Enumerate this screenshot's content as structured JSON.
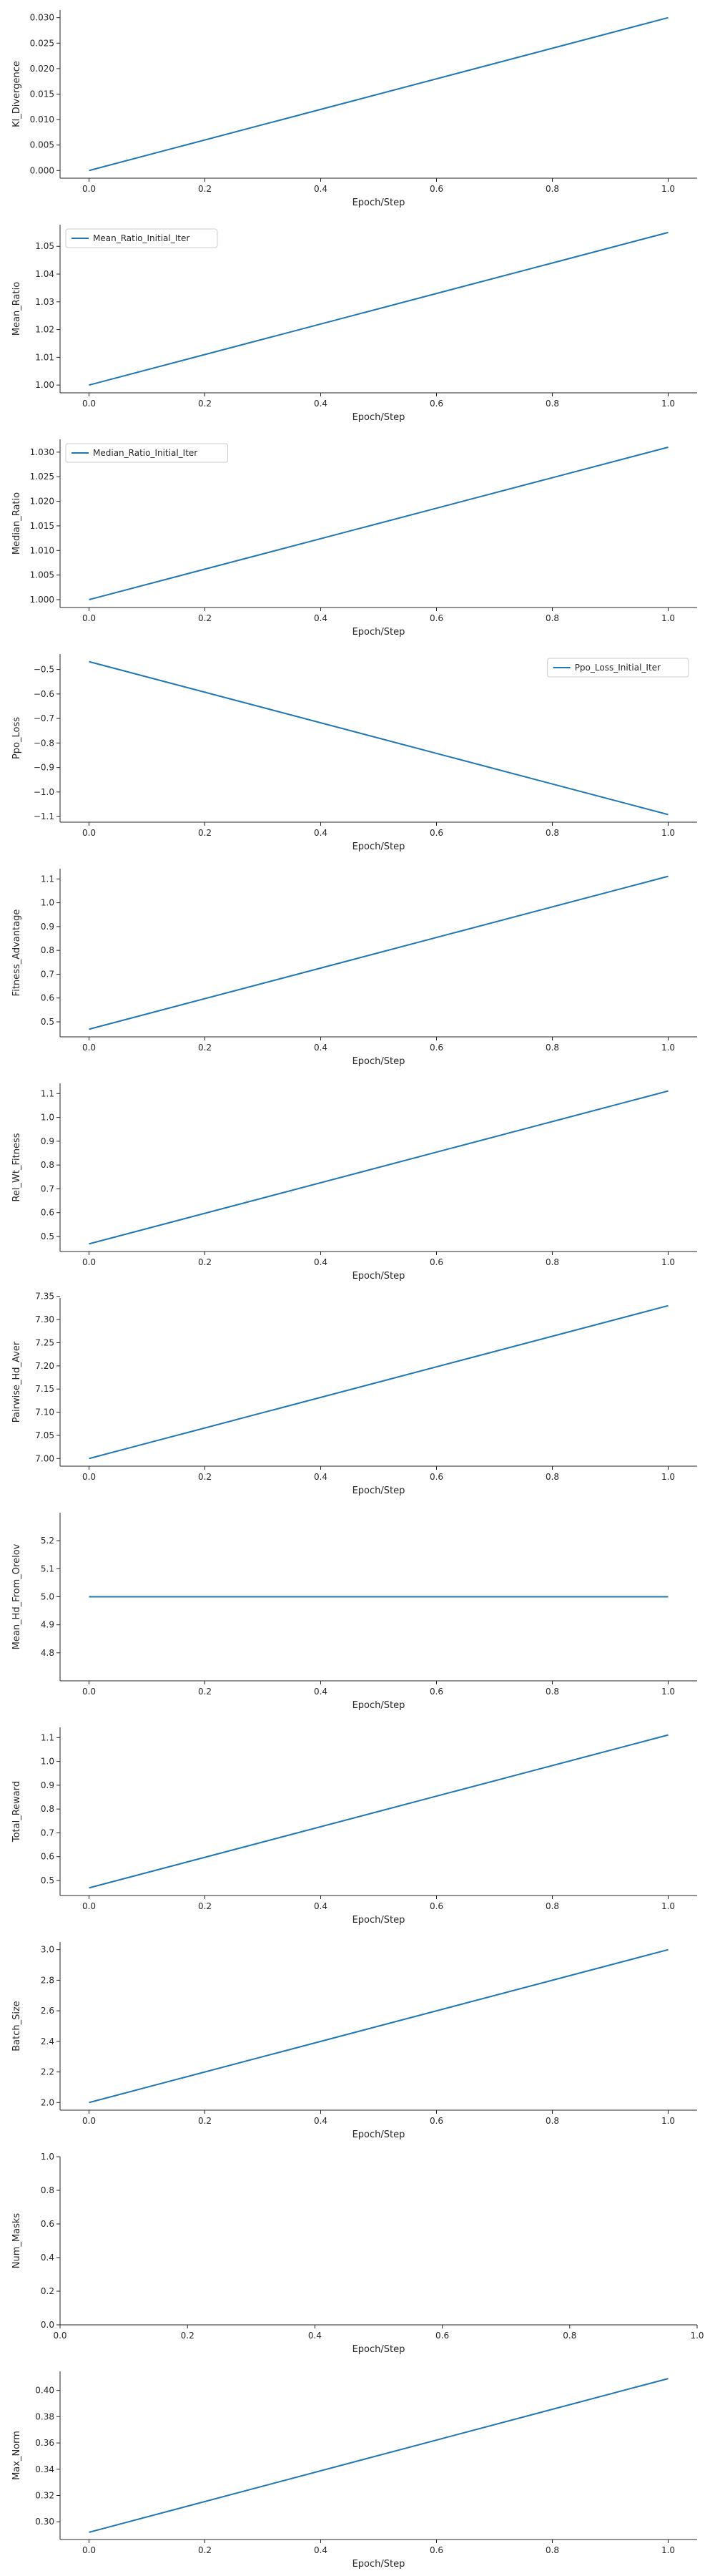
{
  "style": {
    "line_color": "#1f77b4",
    "axis_color": "#262626",
    "legend_border": "#cccccc"
  },
  "chart_data": [
    {
      "type": "line",
      "xlabel": "Epoch/Step",
      "ylabel": "Kl_Divergence",
      "xlim": [
        -0.05,
        1.05
      ],
      "ylim": [
        -0.0015,
        0.0315
      ],
      "xticks": [
        0.0,
        0.2,
        0.4,
        0.6,
        0.8,
        1.0
      ],
      "xtick_labels": [
        "0.0",
        "0.2",
        "0.4",
        "0.6",
        "0.8",
        "1.0"
      ],
      "yticks": [
        0.0,
        0.005,
        0.01,
        0.015,
        0.02,
        0.025,
        0.03
      ],
      "ytick_labels": [
        "0.000",
        "0.005",
        "0.010",
        "0.015",
        "0.020",
        "0.025",
        "0.030"
      ],
      "series": [
        {
          "x": [
            0,
            1
          ],
          "y": [
            0.0,
            0.03
          ]
        }
      ],
      "legend": null
    },
    {
      "type": "line",
      "xlabel": "Epoch/Step",
      "ylabel": "Mean_Ratio",
      "xlim": [
        -0.05,
        1.05
      ],
      "ylim": [
        0.9972,
        1.0578
      ],
      "xticks": [
        0.0,
        0.2,
        0.4,
        0.6,
        0.8,
        1.0
      ],
      "xtick_labels": [
        "0.0",
        "0.2",
        "0.4",
        "0.6",
        "0.8",
        "1.0"
      ],
      "yticks": [
        1.0,
        1.01,
        1.02,
        1.03,
        1.04,
        1.05
      ],
      "ytick_labels": [
        "1.00",
        "1.01",
        "1.02",
        "1.03",
        "1.04",
        "1.05"
      ],
      "series": [
        {
          "name": "Mean_Ratio_Initial_Iter",
          "x": [
            0,
            1
          ],
          "y": [
            1.0,
            1.055
          ]
        }
      ],
      "legend": "upper-left"
    },
    {
      "type": "line",
      "xlabel": "Epoch/Step",
      "ylabel": "Median_Ratio",
      "xlim": [
        -0.05,
        1.05
      ],
      "ylim": [
        0.9984,
        1.0326
      ],
      "xticks": [
        0.0,
        0.2,
        0.4,
        0.6,
        0.8,
        1.0
      ],
      "xtick_labels": [
        "0.0",
        "0.2",
        "0.4",
        "0.6",
        "0.8",
        "1.0"
      ],
      "yticks": [
        1.0,
        1.005,
        1.01,
        1.015,
        1.02,
        1.025,
        1.03
      ],
      "ytick_labels": [
        "1.000",
        "1.005",
        "1.010",
        "1.015",
        "1.020",
        "1.025",
        "1.030"
      ],
      "series": [
        {
          "name": "Median_Ratio_Initial_Iter",
          "x": [
            0,
            1
          ],
          "y": [
            1.0,
            1.031
          ]
        }
      ],
      "legend": "upper-left"
    },
    {
      "type": "line",
      "xlabel": "Epoch/Step",
      "ylabel": "Ppo_Loss",
      "xlim": [
        -0.05,
        1.05
      ],
      "ylim": [
        -1.123,
        -0.437
      ],
      "xticks": [
        0.0,
        0.2,
        0.4,
        0.6,
        0.8,
        1.0
      ],
      "xtick_labels": [
        "0.0",
        "0.2",
        "0.4",
        "0.6",
        "0.8",
        "1.0"
      ],
      "yticks": [
        -0.5,
        -0.6,
        -0.7,
        -0.8,
        -0.9,
        -1.0,
        -1.1
      ],
      "ytick_labels": [
        "−0.5",
        "−0.6",
        "−0.7",
        "−0.8",
        "−0.9",
        "−1.0",
        "−1.1"
      ],
      "series": [
        {
          "name": "Ppo_Loss_Initial_Iter",
          "x": [
            0,
            1
          ],
          "y": [
            -0.468,
            -1.092
          ]
        }
      ],
      "legend": "upper-right"
    },
    {
      "type": "line",
      "xlabel": "Epoch/Step",
      "ylabel": "Fitness_Advantage",
      "xlim": [
        -0.05,
        1.05
      ],
      "ylim": [
        0.437,
        1.143
      ],
      "xticks": [
        0.0,
        0.2,
        0.4,
        0.6,
        0.8,
        1.0
      ],
      "xtick_labels": [
        "0.0",
        "0.2",
        "0.4",
        "0.6",
        "0.8",
        "1.0"
      ],
      "yticks": [
        0.5,
        0.6,
        0.7,
        0.8,
        0.9,
        1.0,
        1.1
      ],
      "ytick_labels": [
        "0.5",
        "0.6",
        "0.7",
        "0.8",
        "0.9",
        "1.0",
        "1.1"
      ],
      "series": [
        {
          "x": [
            0,
            1
          ],
          "y": [
            0.469,
            1.111
          ]
        }
      ],
      "legend": null
    },
    {
      "type": "line",
      "xlabel": "Epoch/Step",
      "ylabel": "Rel_Wt_Fitness",
      "xlim": [
        -0.05,
        1.05
      ],
      "ylim": [
        0.437,
        1.143
      ],
      "xticks": [
        0.0,
        0.2,
        0.4,
        0.6,
        0.8,
        1.0
      ],
      "xtick_labels": [
        "0.0",
        "0.2",
        "0.4",
        "0.6",
        "0.8",
        "1.0"
      ],
      "yticks": [
        0.5,
        0.6,
        0.7,
        0.8,
        0.9,
        1.0,
        1.1
      ],
      "ytick_labels": [
        "0.5",
        "0.6",
        "0.7",
        "0.8",
        "0.9",
        "1.0",
        "1.1"
      ],
      "series": [
        {
          "x": [
            0,
            1
          ],
          "y": [
            0.469,
            1.111
          ]
        }
      ],
      "legend": null
    },
    {
      "type": "line",
      "xlabel": "Epoch/Step",
      "ylabel": "Pairwise_Hd_Aver",
      "xlim": [
        -0.05,
        1.05
      ],
      "ylim": [
        6.9835,
        7.3465
      ],
      "xticks": [
        0.0,
        0.2,
        0.4,
        0.6,
        0.8,
        1.0
      ],
      "xtick_labels": [
        "0.0",
        "0.2",
        "0.4",
        "0.6",
        "0.8",
        "1.0"
      ],
      "yticks": [
        7.0,
        7.05,
        7.1,
        7.15,
        7.2,
        7.25,
        7.3,
        7.35
      ],
      "ytick_labels": [
        "7.00",
        "7.05",
        "7.10",
        "7.15",
        "7.20",
        "7.25",
        "7.30",
        "7.35"
      ],
      "series": [
        {
          "x": [
            0,
            1
          ],
          "y": [
            7.0,
            7.33
          ]
        }
      ],
      "legend": null
    },
    {
      "type": "line",
      "xlabel": "Epoch/Step",
      "ylabel": "Mean_Hd_From_Orelov",
      "xlim": [
        -0.05,
        1.05
      ],
      "ylim": [
        4.7,
        5.3
      ],
      "xticks": [
        0.0,
        0.2,
        0.4,
        0.6,
        0.8,
        1.0
      ],
      "xtick_labels": [
        "0.0",
        "0.2",
        "0.4",
        "0.6",
        "0.8",
        "1.0"
      ],
      "yticks": [
        4.8,
        4.9,
        5.0,
        5.1,
        5.2
      ],
      "ytick_labels": [
        "4.8",
        "4.9",
        "5.0",
        "5.1",
        "5.2"
      ],
      "series": [
        {
          "x": [
            0,
            1
          ],
          "y": [
            5.0,
            5.0
          ]
        }
      ],
      "legend": null
    },
    {
      "type": "line",
      "xlabel": "Epoch/Step",
      "ylabel": "Total_Reward",
      "xlim": [
        -0.05,
        1.05
      ],
      "ylim": [
        0.437,
        1.143
      ],
      "xticks": [
        0.0,
        0.2,
        0.4,
        0.6,
        0.8,
        1.0
      ],
      "xtick_labels": [
        "0.0",
        "0.2",
        "0.4",
        "0.6",
        "0.8",
        "1.0"
      ],
      "yticks": [
        0.5,
        0.6,
        0.7,
        0.8,
        0.9,
        1.0,
        1.1
      ],
      "ytick_labels": [
        "0.5",
        "0.6",
        "0.7",
        "0.8",
        "0.9",
        "1.0",
        "1.1"
      ],
      "series": [
        {
          "x": [
            0,
            1
          ],
          "y": [
            0.469,
            1.111
          ]
        }
      ],
      "legend": null
    },
    {
      "type": "line",
      "xlabel": "Epoch/Step",
      "ylabel": "Batch_Size",
      "xlim": [
        -0.05,
        1.05
      ],
      "ylim": [
        1.95,
        3.05
      ],
      "xticks": [
        0.0,
        0.2,
        0.4,
        0.6,
        0.8,
        1.0
      ],
      "xtick_labels": [
        "0.0",
        "0.2",
        "0.4",
        "0.6",
        "0.8",
        "1.0"
      ],
      "yticks": [
        2.0,
        2.2,
        2.4,
        2.6,
        2.8,
        3.0
      ],
      "ytick_labels": [
        "2.0",
        "2.2",
        "2.4",
        "2.6",
        "2.8",
        "3.0"
      ],
      "series": [
        {
          "x": [
            0,
            1
          ],
          "y": [
            2.0,
            3.0
          ]
        }
      ],
      "legend": null
    },
    {
      "type": "line",
      "xlabel": "Epoch/Step",
      "ylabel": "Num_Masks",
      "xlim": [
        0.0,
        1.0
      ],
      "ylim": [
        0.0,
        1.0
      ],
      "xticks": [
        0.0,
        0.2,
        0.4,
        0.6,
        0.8,
        1.0
      ],
      "xtick_labels": [
        "0.0",
        "0.2",
        "0.4",
        "0.6",
        "0.8",
        "1.0"
      ],
      "yticks": [
        0.0,
        0.2,
        0.4,
        0.6,
        0.8,
        1.0
      ],
      "ytick_labels": [
        "0.0",
        "0.2",
        "0.4",
        "0.6",
        "0.8",
        "1.0"
      ],
      "series": [],
      "legend": null
    },
    {
      "type": "line",
      "xlabel": "Epoch/Step",
      "ylabel": "Max_Norm",
      "xlim": [
        -0.05,
        1.05
      ],
      "ylim": [
        0.2865,
        0.4145
      ],
      "xticks": [
        0.0,
        0.2,
        0.4,
        0.6,
        0.8,
        1.0
      ],
      "xtick_labels": [
        "0.0",
        "0.2",
        "0.4",
        "0.6",
        "0.8",
        "1.0"
      ],
      "yticks": [
        0.3,
        0.32,
        0.34,
        0.36,
        0.38,
        0.4
      ],
      "ytick_labels": [
        "0.30",
        "0.32",
        "0.34",
        "0.36",
        "0.38",
        "0.40"
      ],
      "series": [
        {
          "x": [
            0,
            1
          ],
          "y": [
            0.292,
            0.409
          ]
        }
      ],
      "legend": null
    }
  ]
}
